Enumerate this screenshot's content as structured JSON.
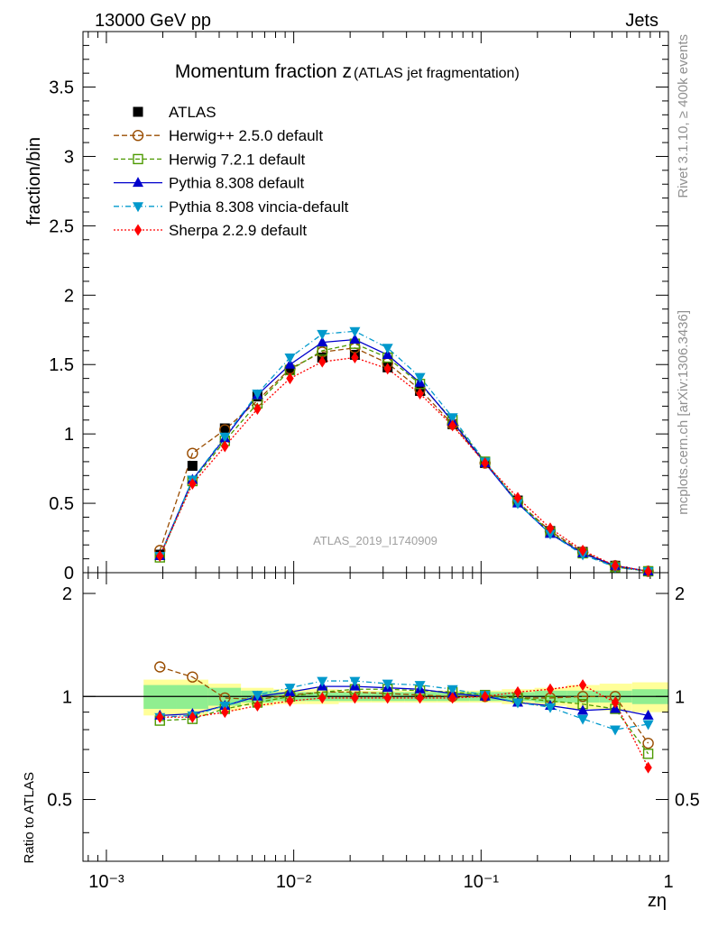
{
  "header": {
    "left": "13000 GeV pp",
    "right": "Jets"
  },
  "side_labels": {
    "top": "Rivet 3.1.10, ≥ 400k events",
    "bottom": "mcplots.cern.ch [arXiv:1306.3436]"
  },
  "watermark": "ATLAS_2019_I1740909",
  "chart_data": {
    "type": "line",
    "title": "Momentum fraction z",
    "subtitle": "(ATLAS jet fragmentation)",
    "xlabel": "zη",
    "ylabel_main": "fraction/bin",
    "ylabel_ratio": "Ratio to ATLAS",
    "x_scale": "log",
    "xlim": [
      0.00075,
      1.0
    ],
    "ylim_main": [
      0,
      3.9
    ],
    "ylim_ratio": [
      0.33,
      2.3
    ],
    "x_tick_labels": [
      "10⁻³",
      "10⁻²",
      "10⁻¹",
      "1"
    ],
    "y_tick_labels_main": [
      "0",
      "0.5",
      "1",
      "1.5",
      "2",
      "2.5",
      "3",
      "3.5"
    ],
    "y_tick_labels_ratio": [
      "0.5",
      "1",
      "2"
    ],
    "legend_position": "top-left",
    "x": [
      0.00193,
      0.00288,
      0.00429,
      0.0064,
      0.00955,
      0.0142,
      0.0212,
      0.0317,
      0.0472,
      0.0704,
      0.105,
      0.157,
      0.234,
      0.349,
      0.52,
      0.78
    ],
    "series": [
      {
        "name": "ATLAS",
        "color": "#000000",
        "marker": "square",
        "dash": "none",
        "values": [
          0.13,
          0.77,
          1.04,
          1.27,
          1.46,
          1.55,
          1.57,
          1.48,
          1.31,
          1.07,
          0.79,
          0.52,
          0.3,
          0.15,
          0.05,
          0.01
        ]
      },
      {
        "name": "Herwig++ 2.5.0 default",
        "color": "#994c00",
        "marker": "circle-open",
        "dash": "6,3",
        "values": [
          0.16,
          0.86,
          1.03,
          1.24,
          1.47,
          1.59,
          1.62,
          1.51,
          1.32,
          1.07,
          0.79,
          0.51,
          0.3,
          0.15,
          0.05,
          0.01
        ]
      },
      {
        "name": "Herwig 7.2.1 default",
        "color": "#4c9900",
        "marker": "square-open",
        "dash": "5,3",
        "values": [
          0.11,
          0.66,
          0.95,
          1.22,
          1.46,
          1.6,
          1.65,
          1.55,
          1.36,
          1.1,
          0.8,
          0.51,
          0.29,
          0.14,
          0.04,
          0.01
        ]
      },
      {
        "name": "Pythia 8.308 default",
        "color": "#0000cc",
        "marker": "triangle-up",
        "dash": "none",
        "values": [
          0.12,
          0.67,
          0.97,
          1.28,
          1.5,
          1.66,
          1.68,
          1.57,
          1.37,
          1.09,
          0.79,
          0.5,
          0.28,
          0.14,
          0.05,
          0.01
        ]
      },
      {
        "name": "Pythia 8.308 vincia-default",
        "color": "#0099cc",
        "marker": "triangle-down",
        "dash": "6,3,1,3",
        "values": [
          0.12,
          0.67,
          0.98,
          1.29,
          1.55,
          1.72,
          1.74,
          1.62,
          1.41,
          1.12,
          0.8,
          0.5,
          0.28,
          0.13,
          0.04,
          0.01
        ]
      },
      {
        "name": "Sherpa 2.2.9 default",
        "color": "#ff0000",
        "marker": "diamond",
        "dash": "2,2",
        "values": [
          0.12,
          0.64,
          0.91,
          1.18,
          1.4,
          1.52,
          1.55,
          1.47,
          1.29,
          1.06,
          0.79,
          0.54,
          0.32,
          0.16,
          0.05,
          0.01
        ]
      }
    ],
    "ratio_series": [
      {
        "name": "Herwig++ 2.5.0 default",
        "values": [
          1.22,
          1.14,
          0.99,
          0.98,
          1.01,
          1.03,
          1.03,
          1.02,
          1.01,
          1.0,
          1.0,
          0.99,
          0.99,
          1.0,
          1.0,
          0.73
        ]
      },
      {
        "name": "Herwig 7.2.1 default",
        "values": [
          0.85,
          0.86,
          0.92,
          0.96,
          1.0,
          1.03,
          1.05,
          1.05,
          1.04,
          1.03,
          1.01,
          0.99,
          0.97,
          0.95,
          0.92,
          0.68
        ]
      },
      {
        "name": "Pythia 8.308 default",
        "values": [
          0.88,
          0.89,
          0.94,
          1.0,
          1.03,
          1.07,
          1.07,
          1.06,
          1.05,
          1.02,
          1.0,
          0.96,
          0.94,
          0.91,
          0.92,
          0.88
        ]
      },
      {
        "name": "Pythia 8.308 vincia-default",
        "values": [
          0.87,
          0.88,
          0.94,
          1.01,
          1.06,
          1.11,
          1.11,
          1.09,
          1.08,
          1.05,
          1.01,
          0.96,
          0.93,
          0.86,
          0.8,
          0.83
        ]
      },
      {
        "name": "Sherpa 2.2.9 default",
        "values": [
          0.87,
          0.87,
          0.9,
          0.94,
          0.97,
          0.99,
          0.99,
          0.99,
          0.99,
          0.99,
          1.0,
          1.03,
          1.05,
          1.08,
          0.96,
          0.62
        ]
      }
    ],
    "uncertainty_band": {
      "x_edges": [
        0.00158,
        0.00235,
        0.0035,
        0.00523,
        0.0078,
        0.0117,
        0.0174,
        0.026,
        0.0389,
        0.058,
        0.0866,
        0.129,
        0.193,
        0.287,
        0.429,
        0.64,
        1.0
      ],
      "inner": [
        0.08,
        0.08,
        0.06,
        0.04,
        0.03,
        0.03,
        0.03,
        0.03,
        0.03,
        0.03,
        0.03,
        0.03,
        0.04,
        0.04,
        0.04,
        0.05
      ],
      "outer": [
        0.12,
        0.12,
        0.09,
        0.06,
        0.05,
        0.05,
        0.04,
        0.04,
        0.04,
        0.04,
        0.04,
        0.05,
        0.06,
        0.08,
        0.09,
        0.1
      ],
      "inner_color": "#90ee90",
      "outer_color": "#ffff99"
    }
  }
}
